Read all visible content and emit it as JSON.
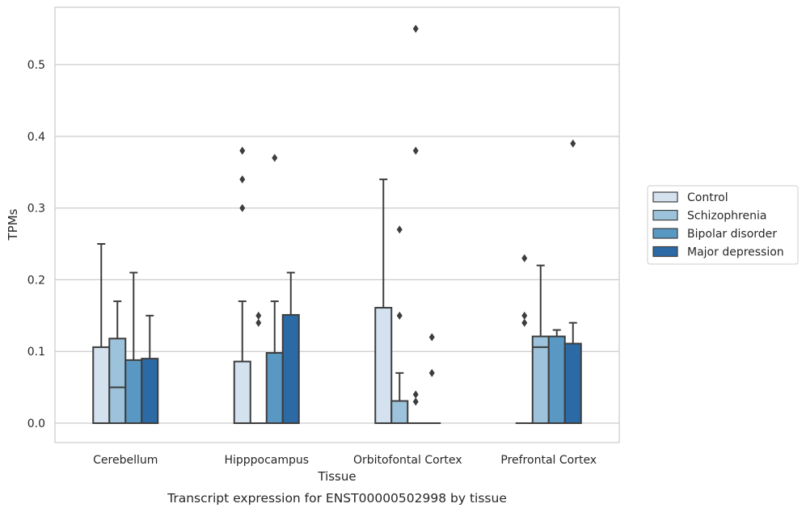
{
  "chart_data": {
    "type": "box",
    "caption": "Transcript expression for ENST00000502998 by tissue",
    "xlabel": "Tissue",
    "ylabel": "TPMs",
    "ylim": [
      -0.027,
      0.58
    ],
    "yticks": [
      0.0,
      0.1,
      0.2,
      0.3,
      0.4,
      0.5
    ],
    "yticklabels": [
      "0.0",
      "0.1",
      "0.2",
      "0.3",
      "0.4",
      "0.5"
    ],
    "grid": "horizontal",
    "legend_position": "right",
    "categories": [
      "Cerebellum",
      "Hipppocampus",
      "Orbitofontal Cortex",
      "Prefrontal Cortex"
    ],
    "series": [
      {
        "name": "Control",
        "color": "#d4e2f0",
        "boxes": [
          {
            "q1": 0.0,
            "median": 0.0,
            "q3": 0.106,
            "whisker_low": 0.0,
            "whisker_high": 0.25,
            "outliers": []
          },
          {
            "q1": 0.0,
            "median": 0.0,
            "q3": 0.086,
            "whisker_low": 0.0,
            "whisker_high": 0.17,
            "outliers": [
              0.3,
              0.34,
              0.38
            ]
          },
          {
            "q1": 0.0,
            "median": 0.0,
            "q3": 0.161,
            "whisker_low": 0.0,
            "whisker_high": 0.34,
            "outliers": []
          },
          {
            "q1": 0.0,
            "median": 0.0,
            "q3": 0.0,
            "whisker_low": 0.0,
            "whisker_high": 0.0,
            "outliers": [
              0.14,
              0.15,
              0.23
            ]
          }
        ]
      },
      {
        "name": "Schizophrenia",
        "color": "#9cc3db",
        "boxes": [
          {
            "q1": 0.0,
            "median": 0.05,
            "q3": 0.118,
            "whisker_low": 0.0,
            "whisker_high": 0.17,
            "outliers": []
          },
          {
            "q1": 0.0,
            "median": 0.0,
            "q3": 0.0,
            "whisker_low": 0.0,
            "whisker_high": 0.0,
            "outliers": [
              0.14,
              0.15
            ]
          },
          {
            "q1": 0.0,
            "median": 0.0,
            "q3": 0.031,
            "whisker_low": 0.0,
            "whisker_high": 0.07,
            "outliers": [
              0.15,
              0.27
            ]
          },
          {
            "q1": 0.0,
            "median": 0.106,
            "q3": 0.121,
            "whisker_low": 0.0,
            "whisker_high": 0.22,
            "outliers": []
          }
        ]
      },
      {
        "name": "Bipolar disorder",
        "color": "#5a98c4",
        "boxes": [
          {
            "q1": 0.0,
            "median": 0.0,
            "q3": 0.088,
            "whisker_low": 0.0,
            "whisker_high": 0.21,
            "outliers": []
          },
          {
            "q1": 0.0,
            "median": 0.0,
            "q3": 0.098,
            "whisker_low": 0.0,
            "whisker_high": 0.17,
            "outliers": [
              0.37
            ]
          },
          {
            "q1": 0.0,
            "median": 0.0,
            "q3": 0.0,
            "whisker_low": 0.0,
            "whisker_high": 0.0,
            "outliers": [
              0.03,
              0.04,
              0.38,
              0.55
            ]
          },
          {
            "q1": 0.0,
            "median": 0.0,
            "q3": 0.121,
            "whisker_low": 0.0,
            "whisker_high": 0.13,
            "outliers": []
          }
        ]
      },
      {
        "name": "Major depression",
        "color": "#2c6aa6",
        "boxes": [
          {
            "q1": 0.0,
            "median": 0.0,
            "q3": 0.09,
            "whisker_low": 0.0,
            "whisker_high": 0.15,
            "outliers": []
          },
          {
            "q1": 0.0,
            "median": 0.0,
            "q3": 0.151,
            "whisker_low": 0.0,
            "whisker_high": 0.21,
            "outliers": []
          },
          {
            "q1": 0.0,
            "median": 0.0,
            "q3": 0.0,
            "whisker_low": 0.0,
            "whisker_high": 0.0,
            "outliers": [
              0.07,
              0.12
            ]
          },
          {
            "q1": 0.0,
            "median": 0.0,
            "q3": 0.111,
            "whisker_low": 0.0,
            "whisker_high": 0.14,
            "outliers": [
              0.39
            ]
          }
        ]
      }
    ]
  }
}
